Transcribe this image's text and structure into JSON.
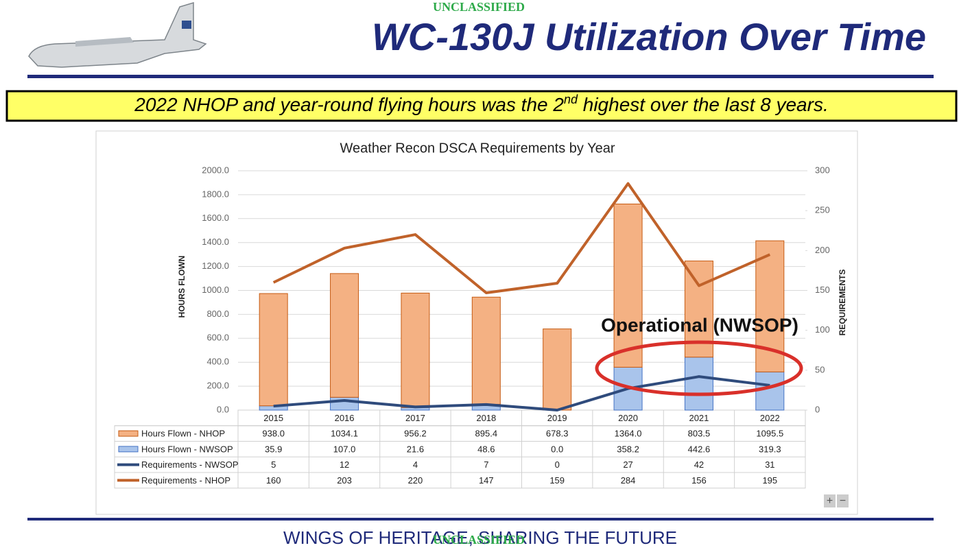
{
  "classification_top": "UNCLASSIFIED",
  "slide_title": "WC-130J Utilization Over Time",
  "banner": {
    "before": "2022 NHOP and year-round flying hours was the 2",
    "superscript": "nd",
    "after": " highest over the last 8 years."
  },
  "chart_data": {
    "type": "bar",
    "stacked": true,
    "title": "Weather Recon DSCA Requirements by Year",
    "y_label": "HOURS FLOWN",
    "y2_label": "REQUIREMENTS",
    "categories": [
      "2015",
      "2016",
      "2017",
      "2018",
      "2019",
      "2020",
      "2021",
      "2022"
    ],
    "series": [
      {
        "name": "Hours Flown - NHOP",
        "type": "bar",
        "color": "#f4b183",
        "values": [
          938.0,
          1034.1,
          956.2,
          895.4,
          678.3,
          1364.0,
          803.5,
          1095.5
        ],
        "value_labels": [
          "938.0",
          "1034.1",
          "956.2",
          "895.4",
          "678.3",
          "1364.0",
          "803.5",
          "1095.5"
        ]
      },
      {
        "name": "Hours Flown - NWSOP",
        "type": "bar",
        "color": "#a9c4eb",
        "values": [
          35.9,
          107.0,
          21.6,
          48.6,
          0.0,
          358.2,
          442.6,
          319.3
        ],
        "value_labels": [
          "35.9",
          "107.0",
          "21.6",
          "48.6",
          "0.0",
          "358.2",
          "442.6",
          "319.3"
        ]
      },
      {
        "name": "Requirements - NWSOP",
        "type": "line",
        "axis": "y2",
        "color": "#2f4b7c",
        "values": [
          5,
          12,
          4,
          7,
          0,
          27,
          42,
          31
        ]
      },
      {
        "name": "Requirements - NHOP",
        "type": "line",
        "axis": "y2",
        "color": "#c0622a",
        "values": [
          160,
          203,
          220,
          147,
          159,
          284,
          156,
          195
        ]
      }
    ],
    "ylim": [
      0,
      2000
    ],
    "yticks": [
      {
        "value": 0,
        "label": "0.0"
      },
      {
        "value": 200,
        "label": "200.0"
      },
      {
        "value": 400,
        "label": "400.0"
      },
      {
        "value": 600,
        "label": "600.0"
      },
      {
        "value": 800,
        "label": "800.0"
      },
      {
        "value": 1000,
        "label": "1000.0"
      },
      {
        "value": 1200,
        "label": "1200.0"
      },
      {
        "value": 1400,
        "label": "1400.0"
      },
      {
        "value": 1600,
        "label": "1600.0"
      },
      {
        "value": 1800,
        "label": "1800.0"
      },
      {
        "value": 2000,
        "label": "2000.0"
      }
    ],
    "y2lim": [
      0,
      300
    ],
    "y2ticks": [
      0,
      50,
      100,
      150,
      200,
      250,
      300
    ],
    "grid": true
  },
  "annotation": "Operational (NWSOP)",
  "zoom_controls": [
    "+",
    "−"
  ],
  "footer": "WINGS OF HERITAGE, SHARING THE FUTURE",
  "classification_bottom": "UNCLASSIFIED"
}
